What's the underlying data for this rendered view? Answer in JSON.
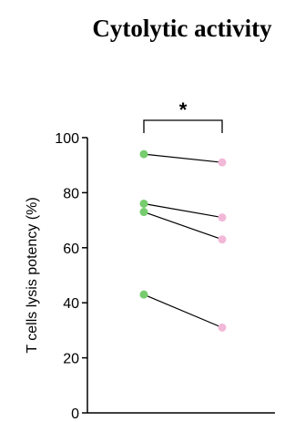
{
  "chart_data": {
    "type": "scatter",
    "title": "Cytolytic activity",
    "ylabel": "T cells lysis potency (%)",
    "xlabel": "",
    "ylim": [
      0,
      100
    ],
    "yticks": [
      "0",
      "20",
      "40",
      "60",
      "80",
      "100"
    ],
    "grid": false,
    "paired": true,
    "significance": "*",
    "colors": {
      "before": "#77cc6e",
      "after": "#f2b8d8"
    },
    "pairs": [
      {
        "before": 94,
        "after": 91
      },
      {
        "before": 76,
        "after": 71
      },
      {
        "before": 73,
        "after": 63
      },
      {
        "before": 43,
        "after": 31
      }
    ]
  }
}
